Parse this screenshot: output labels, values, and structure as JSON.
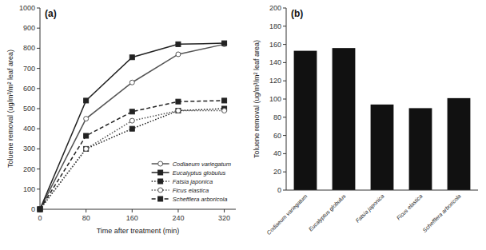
{
  "chart_data": [
    {
      "type": "line",
      "title": "(a)",
      "x_label": "Time after treatment (min)",
      "y_label": "Toluene removal (ug/m³/m² leaf area)",
      "x": [
        0,
        80,
        160,
        240,
        320
      ],
      "xlim": [
        0,
        340
      ],
      "ylim": [
        0,
        1000
      ],
      "xticks": [
        0,
        80,
        160,
        240,
        320
      ],
      "yticks": [
        0,
        100,
        200,
        300,
        400,
        500,
        600,
        700,
        800,
        900,
        1000
      ],
      "grid": false,
      "legend": "lower right",
      "series": [
        {
          "name": "Codiaeum variegatum",
          "color": "#555555",
          "marker": "circle-open",
          "line_style": "solid",
          "values": [
            0,
            450,
            630,
            770,
            820
          ]
        },
        {
          "name": "Eucalyptus globulus",
          "color": "#222222",
          "marker": "square",
          "line_style": "solid",
          "values": [
            0,
            540,
            755,
            820,
            825
          ]
        },
        {
          "name": "Fatsia japonica",
          "color": "#222222",
          "marker": "square",
          "line_style": "dotted",
          "values": [
            0,
            300,
            400,
            490,
            500
          ]
        },
        {
          "name": "Ficus elastica",
          "color": "#555555",
          "marker": "circle-open",
          "line_style": "dotted",
          "values": [
            0,
            300,
            440,
            490,
            490
          ]
        },
        {
          "name": "Schefflera arboricola",
          "color": "#222222",
          "marker": "square",
          "line_style": "dashed",
          "values": [
            0,
            365,
            485,
            535,
            540
          ]
        }
      ]
    },
    {
      "type": "bar",
      "title": "(b)",
      "y_label": "Toluene removal (ug/m³/m² leaf area)",
      "categories": [
        "Codiaeum variegatum",
        "Eucalyptus globulus",
        "Fatsia japonica",
        "Ficus elastica",
        "Schefflera arboricola"
      ],
      "values": [
        153,
        156,
        94,
        90,
        101
      ],
      "color": "#111111",
      "ylim": [
        0,
        200
      ],
      "yticks": [
        0,
        20,
        40,
        60,
        80,
        100,
        120,
        140,
        160,
        180,
        200
      ],
      "grid": false
    }
  ]
}
